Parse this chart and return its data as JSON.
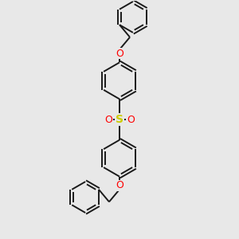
{
  "bg_color": "#e8e8e8",
  "bond_color": "#1a1a1a",
  "S_color": "#cccc00",
  "O_color": "#ff0000",
  "lw": 1.4,
  "fig_size": [
    3.0,
    3.0
  ],
  "dpi": 100,
  "xlim": [
    -2.5,
    2.5
  ],
  "ylim": [
    -5.5,
    5.5
  ]
}
